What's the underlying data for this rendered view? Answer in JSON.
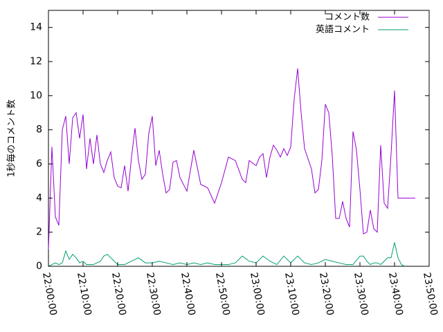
{
  "chart_data": {
    "type": "line",
    "title": "",
    "xlabel": "",
    "ylabel": "1秒毎のコメント数",
    "ylim": [
      0,
      15
    ],
    "yticks": [
      0,
      2,
      4,
      6,
      8,
      10,
      12,
      14
    ],
    "xlim": [
      "22:00:00",
      "23:50:00"
    ],
    "xticks": [
      "22:00:00",
      "22:10:00",
      "22:20:00",
      "22:30:00",
      "22:40:00",
      "22:50:00",
      "23:00:00",
      "23:10:00",
      "23:20:00",
      "23:30:00",
      "23:40:00",
      "23:50:00"
    ],
    "grid": false,
    "legend_position": "top-right",
    "series": [
      {
        "name": "コメント数",
        "color": "#9400d3",
        "x": [
          "22:00:00",
          "22:01:00",
          "22:02:00",
          "22:03:00",
          "22:04:00",
          "22:05:00",
          "22:06:00",
          "22:07:00",
          "22:08:00",
          "22:09:00",
          "22:10:00",
          "22:11:00",
          "22:12:00",
          "22:13:00",
          "22:14:00",
          "22:15:00",
          "22:16:00",
          "22:17:00",
          "22:18:00",
          "22:19:00",
          "22:20:00",
          "22:21:00",
          "22:22:00",
          "22:23:00",
          "22:24:00",
          "22:25:00",
          "22:26:00",
          "22:27:00",
          "22:28:00",
          "22:29:00",
          "22:30:00",
          "22:31:00",
          "22:32:00",
          "22:33:00",
          "22:34:00",
          "22:35:00",
          "22:36:00",
          "22:37:00",
          "22:38:00",
          "22:40:00",
          "22:42:00",
          "22:44:00",
          "22:46:00",
          "22:48:00",
          "22:50:00",
          "22:52:00",
          "22:54:00",
          "22:56:00",
          "22:57:00",
          "22:58:00",
          "23:00:00",
          "23:01:00",
          "23:02:00",
          "23:03:00",
          "23:04:00",
          "23:05:00",
          "23:06:00",
          "23:07:00",
          "23:08:00",
          "23:09:00",
          "23:10:00",
          "23:11:00",
          "23:12:00",
          "23:13:00",
          "23:14:00",
          "23:15:00",
          "23:16:00",
          "23:17:00",
          "23:18:00",
          "23:19:00",
          "23:20:00",
          "23:21:00",
          "23:22:00",
          "23:23:00",
          "23:24:00",
          "23:25:00",
          "23:26:00",
          "23:27:00",
          "23:28:00",
          "23:29:00",
          "23:30:00",
          "23:31:00",
          "23:32:00",
          "23:33:00",
          "23:34:00",
          "23:35:00",
          "23:36:00",
          "23:37:00",
          "23:38:00",
          "23:39:00",
          "23:40:00",
          "23:41:00",
          "23:42:00",
          "23:43:00",
          "23:44:00",
          "23:45:00",
          "23:46:00"
        ],
        "y": [
          1.0,
          7.0,
          2.9,
          2.4,
          8.0,
          8.8,
          6.0,
          8.7,
          9.0,
          7.5,
          8.9,
          5.7,
          7.5,
          6.0,
          7.7,
          6.0,
          5.5,
          6.2,
          6.7,
          5.2,
          4.7,
          4.6,
          5.9,
          4.4,
          6.4,
          8.1,
          6.2,
          5.1,
          5.4,
          7.8,
          8.8,
          5.9,
          6.8,
          5.4,
          4.3,
          4.5,
          6.1,
          6.2,
          5.2,
          4.4,
          6.8,
          4.8,
          4.6,
          3.7,
          4.9,
          6.4,
          6.2,
          5.1,
          4.9,
          6.2,
          5.9,
          6.4,
          6.6,
          5.2,
          6.4,
          7.1,
          6.8,
          6.4,
          6.9,
          6.5,
          7.0,
          9.8,
          11.6,
          9.0,
          6.9,
          6.3,
          5.7,
          4.3,
          4.5,
          6.2,
          9.5,
          9.0,
          6.5,
          2.8,
          2.8,
          3.8,
          2.8,
          2.3,
          7.9,
          6.8,
          4.5,
          1.9,
          2.0,
          3.3,
          2.2,
          2.0,
          7.1,
          3.7,
          3.4,
          6.6,
          10.3,
          4.0,
          4.0,
          4.0,
          4.0,
          4.0,
          4.0
        ]
      },
      {
        "name": "英語コメント",
        "color": "#009e73",
        "x": [
          "22:00:00",
          "22:01:00",
          "22:02:00",
          "22:03:00",
          "22:04:00",
          "22:05:00",
          "22:06:00",
          "22:07:00",
          "22:08:00",
          "22:09:00",
          "22:10:00",
          "22:11:00",
          "22:12:00",
          "22:13:00",
          "22:14:00",
          "22:15:00",
          "22:16:00",
          "22:17:00",
          "22:18:00",
          "22:20:00",
          "22:22:00",
          "22:24:00",
          "22:26:00",
          "22:28:00",
          "22:30:00",
          "22:32:00",
          "22:34:00",
          "22:36:00",
          "22:38:00",
          "22:40:00",
          "22:42:00",
          "22:44:00",
          "22:46:00",
          "22:48:00",
          "22:50:00",
          "22:52:00",
          "22:54:00",
          "22:56:00",
          "22:58:00",
          "23:00:00",
          "23:02:00",
          "23:04:00",
          "23:06:00",
          "23:08:00",
          "23:10:00",
          "23:12:00",
          "23:14:00",
          "23:16:00",
          "23:18:00",
          "23:20:00",
          "23:22:00",
          "23:24:00",
          "23:26:00",
          "23:28:00",
          "23:30:00",
          "23:31:00",
          "23:32:00",
          "23:33:00",
          "23:34:00",
          "23:35:00",
          "23:36:00",
          "23:37:00",
          "23:38:00",
          "23:39:00",
          "23:40:00",
          "23:41:00",
          "23:42:00",
          "23:43:00"
        ],
        "y": [
          0.0,
          0.1,
          0.2,
          0.1,
          0.2,
          0.9,
          0.4,
          0.7,
          0.5,
          0.2,
          0.3,
          0.1,
          0.1,
          0.1,
          0.2,
          0.3,
          0.6,
          0.7,
          0.5,
          0.1,
          0.1,
          0.3,
          0.5,
          0.2,
          0.2,
          0.3,
          0.2,
          0.1,
          0.2,
          0.1,
          0.2,
          0.1,
          0.2,
          0.1,
          0.1,
          0.1,
          0.2,
          0.6,
          0.3,
          0.2,
          0.6,
          0.3,
          0.1,
          0.6,
          0.2,
          0.6,
          0.2,
          0.1,
          0.2,
          0.4,
          0.3,
          0.2,
          0.1,
          0.1,
          0.6,
          0.6,
          0.3,
          0.1,
          0.2,
          0.2,
          0.1,
          0.3,
          0.5,
          0.5,
          1.4,
          0.5,
          0.1,
          0.0
        ]
      }
    ]
  }
}
